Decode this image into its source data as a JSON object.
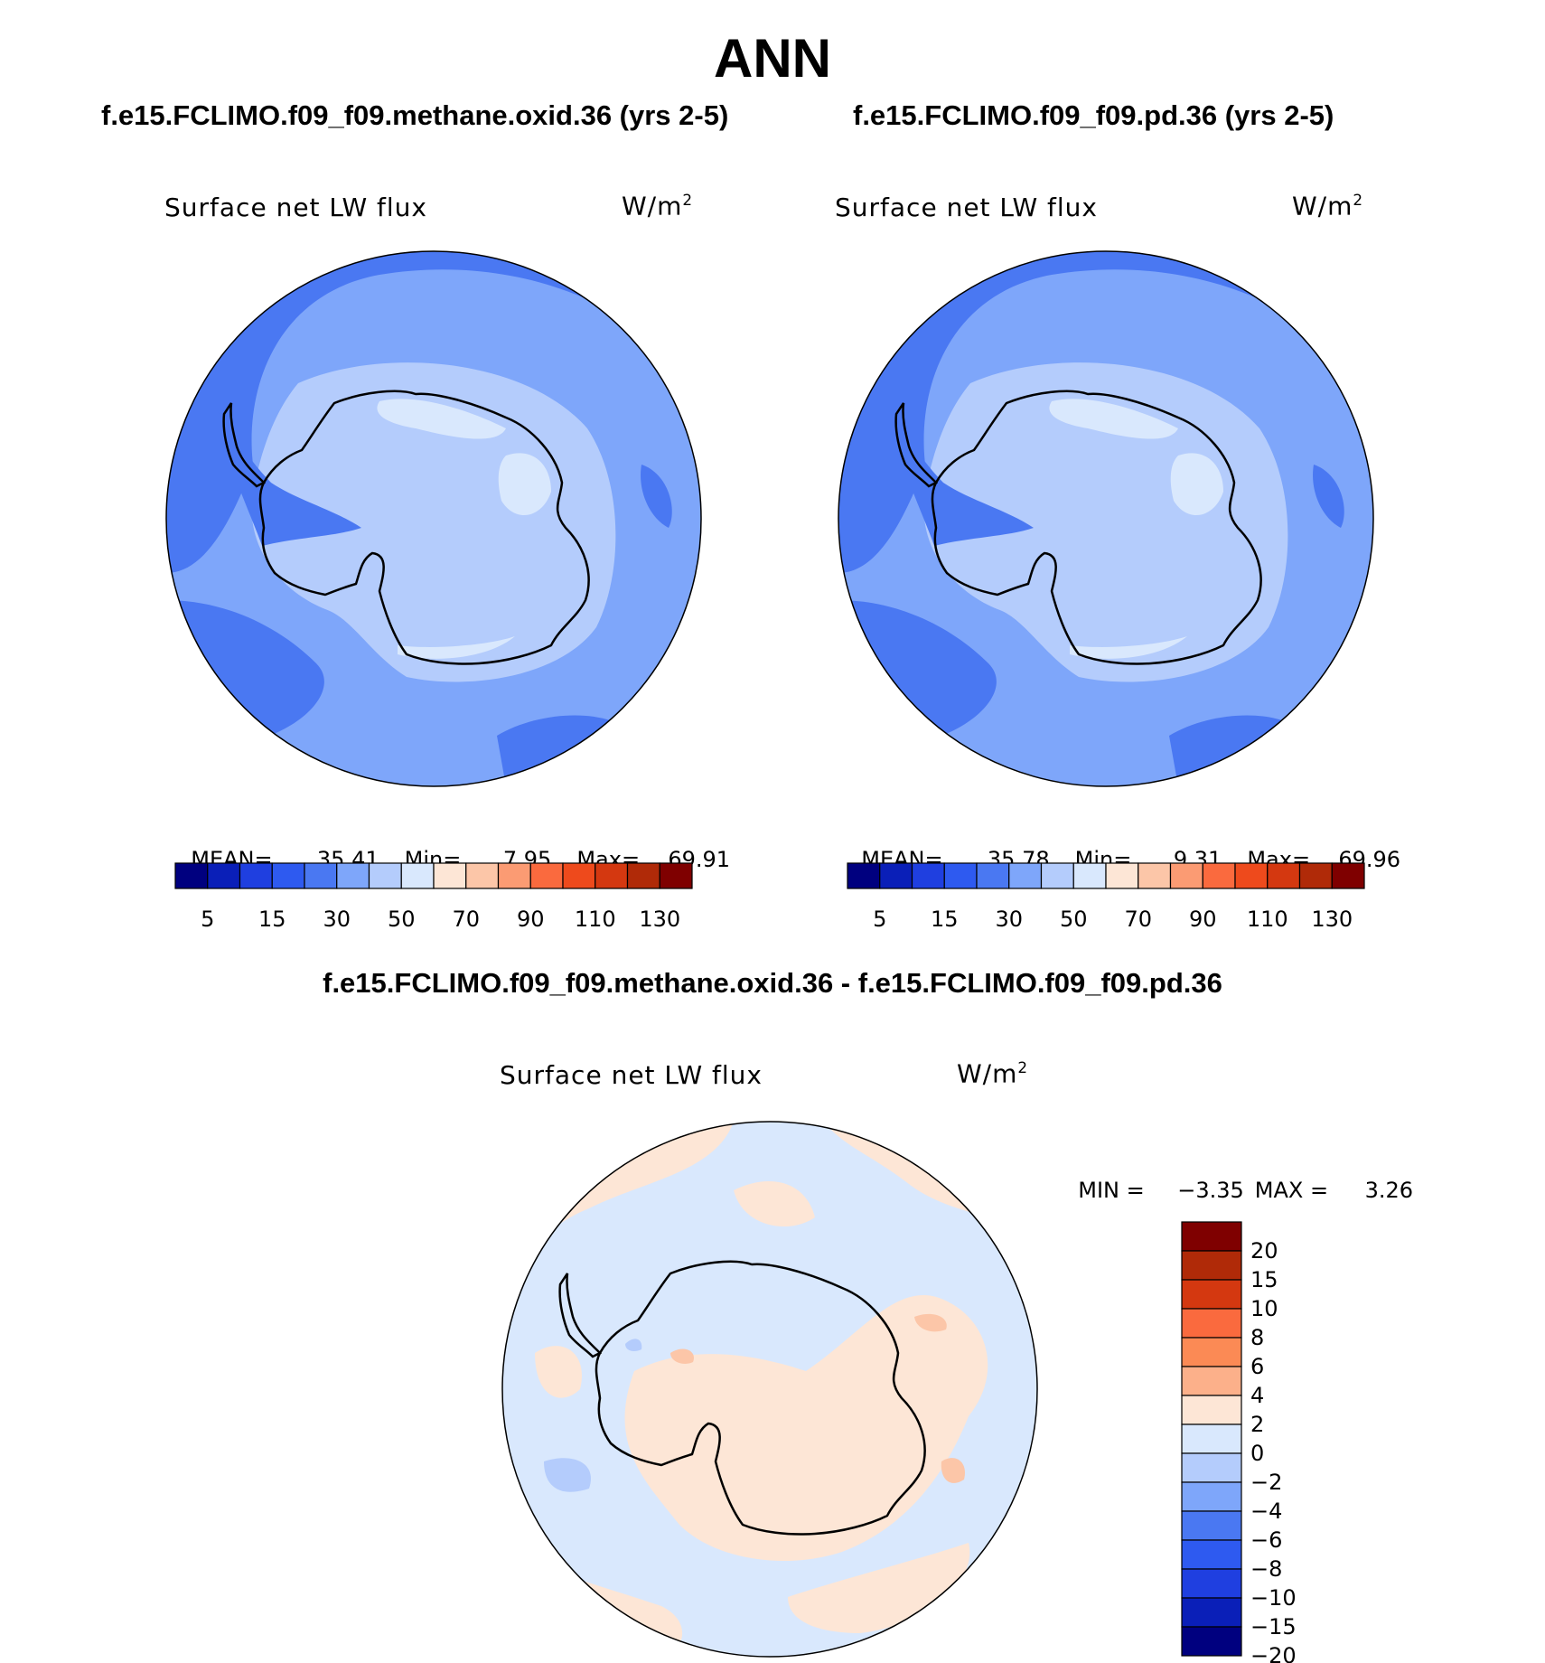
{
  "page": {
    "title": "ANN"
  },
  "panels": [
    {
      "case_title": "f.e15.FCLIMO.f09_f09.methane.oxid.36 (yrs 2-5)",
      "variable_label": "Surface net LW flux",
      "units": "W/m",
      "units_exp": "2",
      "mean_label": "MEAN=",
      "mean": "35.41",
      "min_label": "Min=",
      "min": "7.95",
      "max_label": "Max=",
      "max": "69.91"
    },
    {
      "case_title": "f.e15.FCLIMO.f09_f09.pd.36 (yrs 2-5)",
      "variable_label": "Surface net LW flux",
      "units": "W/m",
      "units_exp": "2",
      "mean_label": "MEAN=",
      "mean": "35.78",
      "min_label": "Min=",
      "min": "9.31",
      "max_label": "Max=",
      "max": "69.96"
    }
  ],
  "difference_panel": {
    "title": "f.e15.FCLIMO.f09_f09.methane.oxid.36 - f.e15.FCLIMO.f09_f09.pd.36",
    "variable_label": "Surface net LW flux",
    "units": "W/m",
    "units_exp": "2",
    "min_label": "MIN =",
    "min": "−3.35",
    "max_label": "MAX =",
    "max": "3.26"
  },
  "colorbar_main": {
    "colors": [
      "#00007f",
      "#0a1fb8",
      "#1f3fe0",
      "#2e5af0",
      "#4a78f2",
      "#7ea6fa",
      "#b4ccfc",
      "#d9e8fd",
      "#fde6d6",
      "#fcc6a8",
      "#fb9b73",
      "#fa6a3e",
      "#ee4a1c",
      "#d43810",
      "#b02a08",
      "#7f0000"
    ],
    "tick_labels": [
      "5",
      "15",
      "30",
      "50",
      "70",
      "90",
      "110",
      "130"
    ]
  },
  "colorbar_diff": {
    "colors": [
      "#7f0000",
      "#b02a08",
      "#d43810",
      "#fa6a3e",
      "#fb8a55",
      "#fcb08a",
      "#fde6d6",
      "#d9e8fd",
      "#b4ccfc",
      "#7ea6fa",
      "#4a78f2",
      "#2e5af0",
      "#1f3fe0",
      "#0a1fb8",
      "#00007f"
    ],
    "tick_labels": [
      "20",
      "15",
      "10",
      "8",
      "6",
      "4",
      "2",
      "0",
      "−2",
      "−4",
      "−6",
      "−8",
      "−10",
      "−15",
      "−20"
    ]
  },
  "map_colors": {
    "ocean_deep": "#4a78f2",
    "ocean_mid": "#7ea6fa",
    "ocean_light": "#b4ccfc",
    "ice": "#d9e8fd",
    "diff_neg": "#d9e8fd",
    "diff_pos": "#fde6d6",
    "diff_pos2": "#fcc6a8",
    "diff_neg2": "#b4ccfc"
  }
}
